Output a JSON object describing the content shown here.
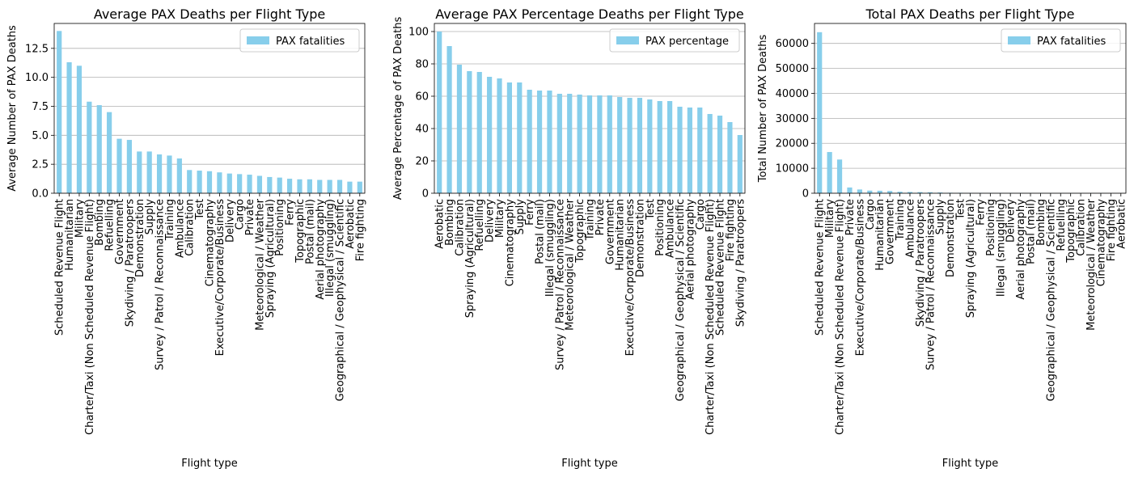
{
  "colors": {
    "bar": "#87ceeb",
    "grid": "#b0b0b0",
    "axis": "#000000"
  },
  "chart_data": [
    {
      "type": "bar",
      "title": "Average PAX Deaths per Flight Type",
      "xlabel": "Flight type",
      "ylabel": "Average Number of PAX Deaths",
      "legend": "PAX fatalities",
      "legend_position": "top-right",
      "grid": "y",
      "ylim": [
        0,
        14.65
      ],
      "yticks": [
        "0.0",
        "2.5",
        "5.0",
        "7.5",
        "10.0",
        "12.5"
      ],
      "categories": [
        "Scheduled Revenue Flight",
        "Humanitarian",
        "Military",
        "Charter/Taxi (Non Scheduled Revenue Flight)",
        "Bombing",
        "Refuelling",
        "Government",
        "Skydiving / Paratroopers",
        "Demonstration",
        "Supply",
        "Survey / Patrol / Reconnaissance",
        "Training",
        "Ambulance",
        "Calibration",
        "Test",
        "Cinematography",
        "Executive/Corporate/Business",
        "Delivery",
        "Cargo",
        "Private",
        "Meteorological / Weather",
        "Spraying (Agricultural)",
        "Positioning",
        "Ferry",
        "Topographic",
        "Postal (mail)",
        "Aerial photography",
        "Illegal (smuggling)",
        "Geographical / Geophysical / Scientific",
        "Aerobatic",
        "Fire fighting"
      ],
      "values": [
        14.0,
        11.3,
        11.0,
        7.9,
        7.6,
        7.0,
        4.7,
        4.6,
        3.6,
        3.6,
        3.35,
        3.25,
        3.0,
        2.0,
        1.95,
        1.9,
        1.8,
        1.7,
        1.65,
        1.6,
        1.5,
        1.4,
        1.35,
        1.25,
        1.2,
        1.2,
        1.15,
        1.15,
        1.15,
        1.0,
        1.0
      ]
    },
    {
      "type": "bar",
      "title": "Average PAX Percentage Deaths per Flight Type",
      "xlabel": "Flight type",
      "ylabel": "Average Percentage of PAX Deaths",
      "legend": "PAX percentage",
      "legend_position": "top-right",
      "grid": "y",
      "ylim": [
        0,
        105
      ],
      "yticks": [
        "0",
        "20",
        "40",
        "60",
        "80",
        "100"
      ],
      "categories": [
        "Aerobatic",
        "Bombing",
        "Calibration",
        "Spraying (Agricultural)",
        "Refuelling",
        "Delivery",
        "Military",
        "Cinematography",
        "Supply",
        "Ferry",
        "Postal (mail)",
        "Illegal (smuggling)",
        "Survey / Patrol / Reconnaissance",
        "Meteorological / Weather",
        "Topographic",
        "Training",
        "Private",
        "Government",
        "Humanitarian",
        "Executive/Corporate/Business",
        "Demonstration",
        "Test",
        "Positioning",
        "Ambulance",
        "Geographical / Geophysical / Scientific",
        "Aerial photography",
        "Cargo",
        "Charter/Taxi (Non Scheduled Revenue Flight)",
        "Scheduled Revenue Flight",
        "Fire fighting",
        "Skydiving / Paratroopers"
      ],
      "values": [
        100.0,
        91.0,
        79.5,
        75.5,
        75.0,
        72.0,
        71.0,
        68.5,
        68.5,
        64.0,
        63.5,
        63.5,
        61.5,
        61.5,
        61.0,
        60.5,
        60.5,
        60.5,
        59.5,
        59.0,
        59.0,
        58.0,
        57.0,
        57.0,
        53.5,
        53.0,
        53.0,
        49.0,
        48.0,
        44.0,
        36.0
      ]
    },
    {
      "type": "bar",
      "title": "Total PAX Deaths per Flight Type",
      "xlabel": "Flight type",
      "ylabel": "Total Number of PAX Deaths",
      "legend": "PAX fatalities",
      "legend_position": "top-right",
      "grid": "y",
      "ylim": [
        0,
        68000
      ],
      "yticks": [
        "0",
        "10000",
        "20000",
        "30000",
        "40000",
        "50000",
        "60000"
      ],
      "categories": [
        "Scheduled Revenue Flight",
        "Military",
        "Charter/Taxi (Non Scheduled Revenue Flight)",
        "Private",
        "Executive/Corporate/Business",
        "Cargo",
        "Humanitarian",
        "Government",
        "Training",
        "Ambulance",
        "Skydiving / Paratroopers",
        "Survey / Patrol / Reconnaissance",
        "Supply",
        "Demonstration",
        "Test",
        "Spraying (Agricultural)",
        "Ferry",
        "Positioning",
        "Illegal (smuggling)",
        "Delivery",
        "Aerial photography",
        "Postal (mail)",
        "Bombing",
        "Geographical / Geophysical / Scientific",
        "Refuelling",
        "Topographic",
        "Calibration",
        "Meteorological / Weather",
        "Cinematography",
        "Fire fighting",
        "Aerobatic"
      ],
      "values": [
        64500,
        16500,
        13500,
        2300,
        1500,
        1050,
        1000,
        900,
        600,
        500,
        450,
        400,
        300,
        200,
        180,
        150,
        120,
        100,
        90,
        80,
        70,
        60,
        50,
        40,
        35,
        30,
        25,
        20,
        15,
        10,
        5
      ]
    }
  ]
}
